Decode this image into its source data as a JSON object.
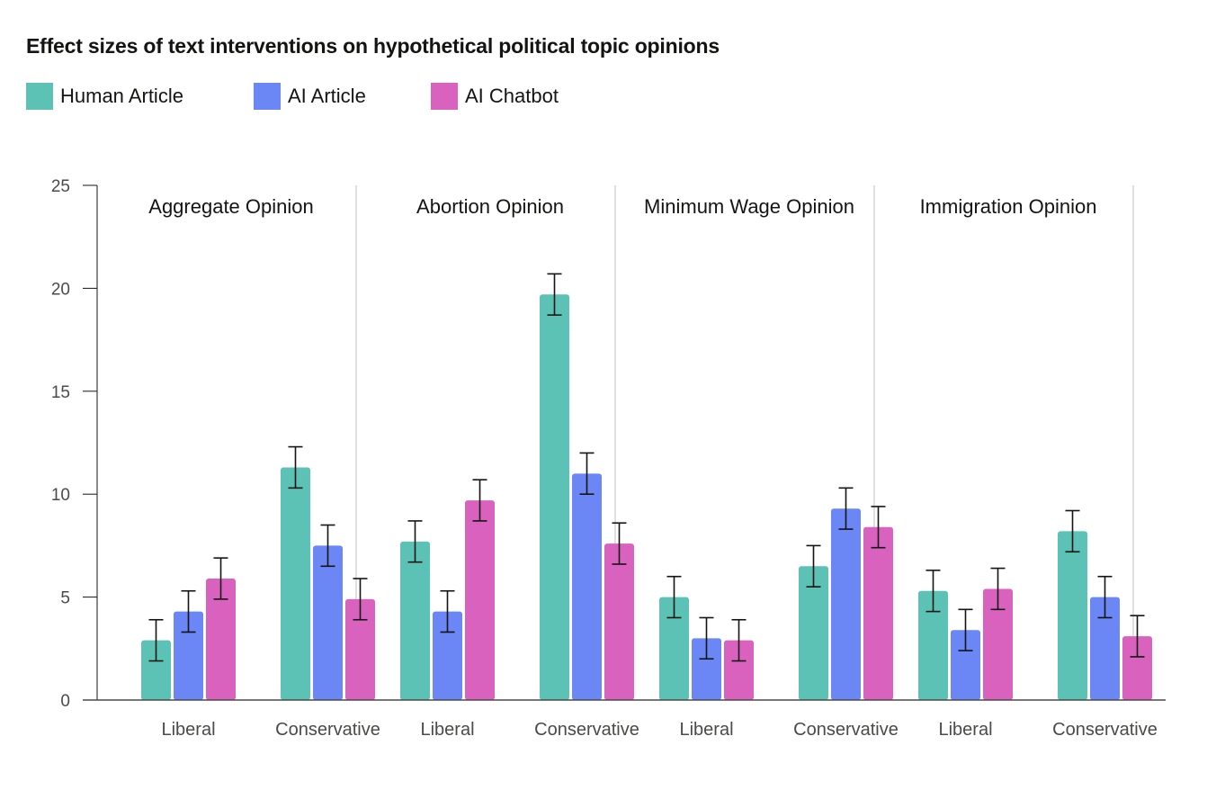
{
  "title": "Effect sizes of text interventions on hypothetical political topic opinions",
  "legend": [
    {
      "label": "Human Article",
      "color": "#5bc2b5"
    },
    {
      "label": "AI Article",
      "color": "#6b86f5"
    },
    {
      "label": "AI Chatbot",
      "color": "#d962bf"
    }
  ],
  "chart_data": {
    "type": "bar",
    "title": "Effect sizes of text interventions on hypothetical political topic opinions",
    "ylim": [
      0,
      25
    ],
    "yticks": [
      "0",
      "5",
      "10",
      "15",
      "20",
      "25"
    ],
    "grid": false,
    "legend_position": "top-left",
    "groups": [
      "Liberal",
      "Conservative"
    ],
    "panels": [
      {
        "name": "Aggregate Opinion",
        "series": [
          {
            "name": "Human Article",
            "values": [
              2.9,
              11.3
            ],
            "errors": [
              1.0,
              1.0
            ]
          },
          {
            "name": "AI Article",
            "values": [
              4.3,
              7.5
            ],
            "errors": [
              1.0,
              1.0
            ]
          },
          {
            "name": "AI Chatbot",
            "values": [
              5.9,
              4.9
            ],
            "errors": [
              1.0,
              1.0
            ]
          }
        ]
      },
      {
        "name": "Abortion Opinion",
        "series": [
          {
            "name": "Human Article",
            "values": [
              7.7,
              19.7
            ],
            "errors": [
              1.0,
              1.0
            ]
          },
          {
            "name": "AI Article",
            "values": [
              4.3,
              11.0
            ],
            "errors": [
              1.0,
              1.0
            ]
          },
          {
            "name": "AI Chatbot",
            "values": [
              9.7,
              7.6
            ],
            "errors": [
              1.0,
              1.0
            ]
          }
        ]
      },
      {
        "name": "Minimum Wage Opinion",
        "series": [
          {
            "name": "Human Article",
            "values": [
              5.0,
              6.5
            ],
            "errors": [
              1.0,
              1.0
            ]
          },
          {
            "name": "AI Article",
            "values": [
              3.0,
              9.3
            ],
            "errors": [
              1.0,
              1.0
            ]
          },
          {
            "name": "AI Chatbot",
            "values": [
              2.9,
              8.4
            ],
            "errors": [
              1.0,
              1.0
            ]
          }
        ]
      },
      {
        "name": "Immigration Opinion",
        "series": [
          {
            "name": "Human Article",
            "values": [
              5.3,
              8.2
            ],
            "errors": [
              1.0,
              1.0
            ]
          },
          {
            "name": "AI Article",
            "values": [
              3.4,
              5.0
            ],
            "errors": [
              1.0,
              1.0
            ]
          },
          {
            "name": "AI Chatbot",
            "values": [
              5.4,
              3.1
            ],
            "errors": [
              1.0,
              1.0
            ]
          }
        ]
      }
    ]
  }
}
